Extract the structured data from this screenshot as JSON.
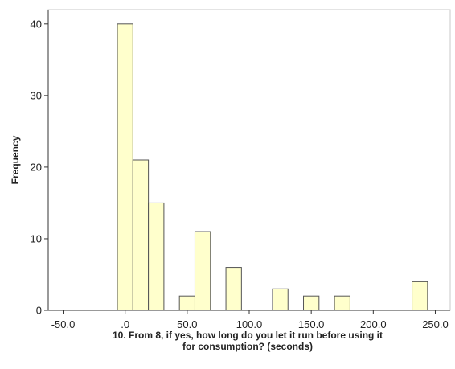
{
  "chart_data": {
    "type": "bar",
    "title": "",
    "xlabel_lines": [
      "10. From 8, if yes, how long do you let it run before using it",
      "for consumption? (seconds)"
    ],
    "ylabel": "Frequency",
    "xlim": [
      -62,
      262
    ],
    "ylim": [
      0,
      42
    ],
    "x_ticks": [
      -50,
      0,
      50,
      100,
      150,
      200,
      250
    ],
    "x_tick_labels": [
      "-50.0",
      ".0",
      "50.0",
      "100.0",
      "150.0",
      "200.0",
      "250.0"
    ],
    "y_ticks": [
      0,
      10,
      20,
      30,
      40
    ],
    "y_tick_labels": [
      "0",
      "10",
      "20",
      "30",
      "40"
    ],
    "bin_width": 12.5,
    "bins": [
      {
        "start": -6.25,
        "end": 6.25,
        "frequency": 40
      },
      {
        "start": 6.25,
        "end": 18.75,
        "frequency": 21
      },
      {
        "start": 18.75,
        "end": 31.25,
        "frequency": 15
      },
      {
        "start": 43.75,
        "end": 56.25,
        "frequency": 2
      },
      {
        "start": 56.25,
        "end": 68.75,
        "frequency": 11
      },
      {
        "start": 81.25,
        "end": 93.75,
        "frequency": 6
      },
      {
        "start": 118.75,
        "end": 131.25,
        "frequency": 3
      },
      {
        "start": 143.75,
        "end": 156.25,
        "frequency": 2
      },
      {
        "start": 168.75,
        "end": 181.25,
        "frequency": 2
      },
      {
        "start": 231.25,
        "end": 243.75,
        "frequency": 4
      }
    ],
    "bar_color": "#ffffcc",
    "bar_edge_color": "#555555",
    "grid": false,
    "legend": "none"
  }
}
